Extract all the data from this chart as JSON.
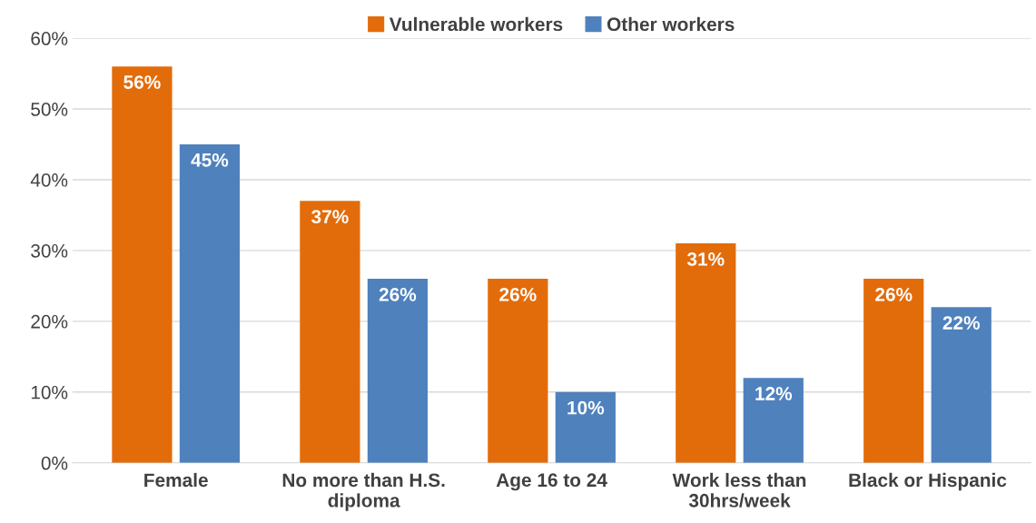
{
  "chart_data": {
    "type": "bar",
    "categories": [
      "Female",
      "No more than H.S. diploma",
      "Age 16 to 24",
      "Work less than 30hrs/week",
      "Black or Hispanic"
    ],
    "series": [
      {
        "name": "Vulnerable workers",
        "color": "#e36c0a",
        "values": [
          56,
          37,
          26,
          31,
          26
        ],
        "value_labels": [
          "56%",
          "37%",
          "26%",
          "31%",
          "26%"
        ]
      },
      {
        "name": "Other workers",
        "color": "#4f81bd",
        "values": [
          45,
          26,
          10,
          12,
          22
        ],
        "value_labels": [
          "45%",
          "26%",
          "10%",
          "12%",
          "22%"
        ]
      }
    ],
    "ylim": [
      0,
      60
    ],
    "yticks": [
      {
        "value": 0,
        "label": "0%"
      },
      {
        "value": 10,
        "label": "10%"
      },
      {
        "value": 20,
        "label": "20%"
      },
      {
        "value": 30,
        "label": "30%"
      },
      {
        "value": 40,
        "label": "40%"
      },
      {
        "value": 50,
        "label": "50%"
      },
      {
        "value": 60,
        "label": "60%"
      }
    ],
    "grid": "y",
    "legend": "top"
  }
}
